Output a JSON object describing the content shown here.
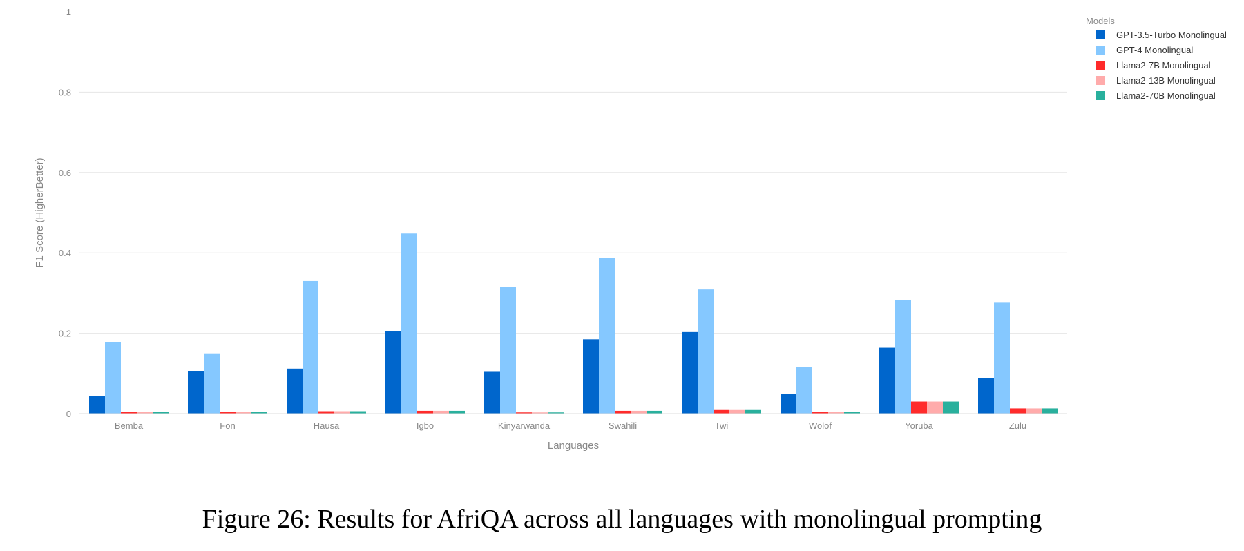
{
  "chart_data": {
    "type": "bar",
    "xlabel": "Languages",
    "ylabel": "F1 Score (HigherBetter)",
    "ylim": [
      0,
      1
    ],
    "yticks": [
      0,
      0.2,
      0.4,
      0.6,
      0.8,
      1
    ],
    "ytick_labels": [
      "0",
      "0.2",
      "0.4",
      "0.6",
      "0.8",
      "1"
    ],
    "grid": true,
    "legend_title": "Models",
    "legend_position": "top-right",
    "categories": [
      "Bemba",
      "Fon",
      "Hausa",
      "Igbo",
      "Kinyarwanda",
      "Swahili",
      "Twi",
      "Wolof",
      "Yoruba",
      "Zulu"
    ],
    "series": [
      {
        "name": "GPT-3.5-Turbo Monolingual",
        "color": "#0066cc",
        "values": [
          0.044,
          0.105,
          0.112,
          0.205,
          0.104,
          0.185,
          0.203,
          0.049,
          0.164,
          0.088
        ]
      },
      {
        "name": "GPT-4 Monolingual",
        "color": "#85c8ff",
        "values": [
          0.177,
          0.15,
          0.33,
          0.448,
          0.315,
          0.388,
          0.309,
          0.116,
          0.283,
          0.276
        ]
      },
      {
        "name": "Llama2-7B Monolingual",
        "color": "#ff2b2b",
        "values": [
          0.004,
          0.005,
          0.006,
          0.007,
          0.003,
          0.007,
          0.009,
          0.004,
          0.03,
          0.013
        ]
      },
      {
        "name": "Llama2-13B Monolingual",
        "color": "#ffabab",
        "values": [
          0.004,
          0.005,
          0.006,
          0.007,
          0.003,
          0.007,
          0.009,
          0.004,
          0.03,
          0.013
        ]
      },
      {
        "name": "Llama2-70B Monolingual",
        "color": "#29b09d",
        "values": [
          0.004,
          0.005,
          0.006,
          0.007,
          0.003,
          0.007,
          0.009,
          0.004,
          0.03,
          0.013
        ]
      }
    ]
  },
  "caption": "Figure 26: Results for AfriQA across all languages with monolingual prompting"
}
